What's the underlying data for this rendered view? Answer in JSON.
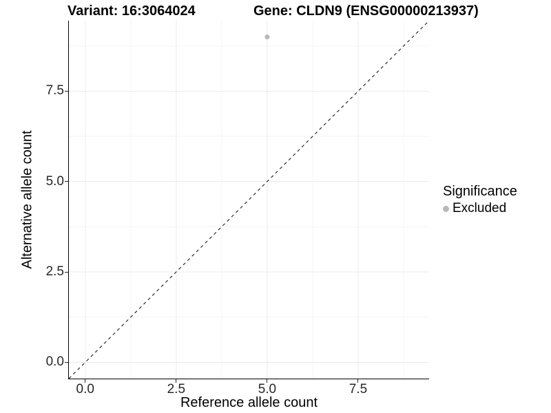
{
  "header": {
    "variant_title": "Variant: 16:3064024",
    "gene_title": "Gene: CLDN9 (ENSG00000213937)"
  },
  "chart_data": {
    "type": "scatter",
    "title": "Variant: 16:3064024   Gene: CLDN9 (ENSG00000213937)",
    "xlabel": "Reference allele count",
    "ylabel": "Alternative allele count",
    "xlim": [
      -0.45,
      9.45
    ],
    "ylim": [
      -0.45,
      9.45
    ],
    "x_ticks": [
      0.0,
      2.5,
      5.0,
      7.5
    ],
    "y_ticks": [
      0.0,
      2.5,
      5.0,
      7.5
    ],
    "x_tick_labels": [
      "0.0",
      "2.5",
      "5.0",
      "7.5"
    ],
    "y_tick_labels": [
      "0.0",
      "2.5",
      "5.0",
      "7.5"
    ],
    "x_minor_ticks": [
      1.25,
      3.75,
      6.25,
      8.75
    ],
    "y_minor_ticks": [
      1.25,
      3.75,
      6.25,
      8.75
    ],
    "grid": true,
    "legend_position": "right",
    "series": [
      {
        "name": "Excluded",
        "color": "#b8b8b8",
        "points": [
          {
            "x": 5,
            "y": 9
          }
        ]
      }
    ],
    "reference_line": {
      "label": "identity y=x",
      "style": "dashed",
      "from": [
        -0.45,
        -0.45
      ],
      "to": [
        9.45,
        9.45
      ]
    }
  },
  "axes": {
    "x": {
      "label": "Reference allele count"
    },
    "y": {
      "label": "Alternative allele count"
    }
  },
  "legend": {
    "title": "Significance",
    "items": [
      {
        "label": "Excluded",
        "color": "#b8b8b8"
      }
    ]
  },
  "colors": {
    "background": "#ffffff",
    "grid_major": "#ebebeb",
    "grid_minor": "#f5f5f5",
    "axis_line": "#000000",
    "tick_text": "#262626",
    "dashed_line": "#1a1a1a",
    "point": "#b8b8b8"
  }
}
